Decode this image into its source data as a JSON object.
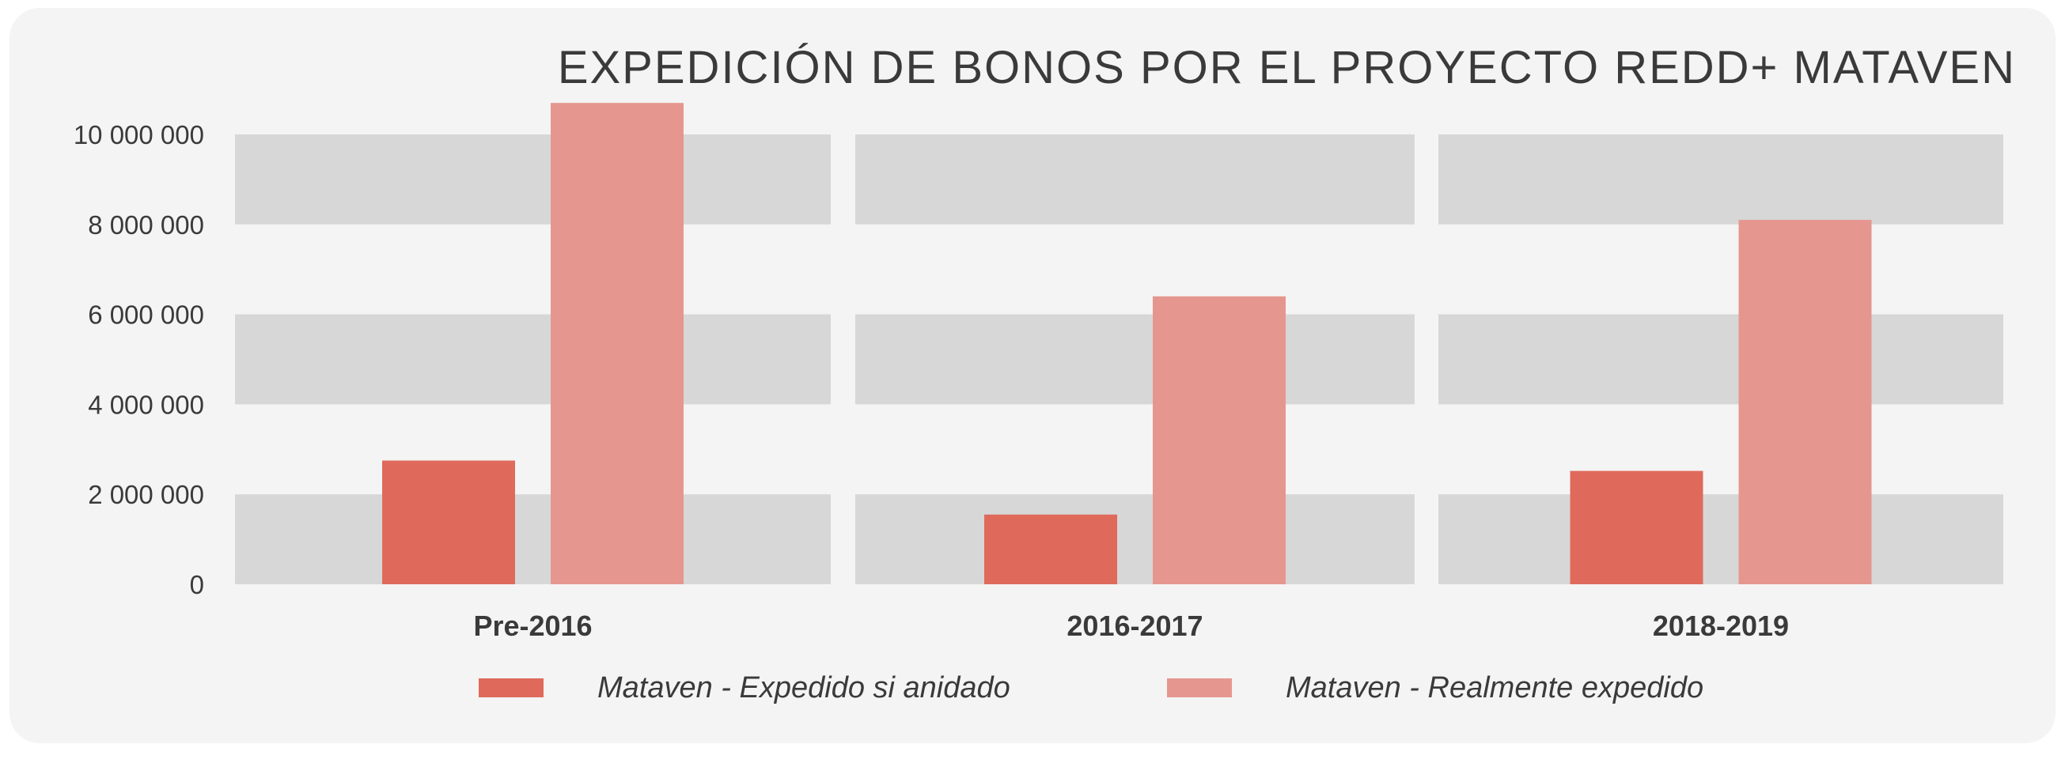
{
  "chart_data": {
    "type": "bar",
    "title": "EXPEDICIÓN DE BONOS POR EL PROYECTO REDD+ MATAVEN",
    "xlabel": "",
    "ylabel": "",
    "categories": [
      "Pre-2016",
      "2016-2017",
      "2018-2019"
    ],
    "series": [
      {
        "name": "Mataven - Expedido si anidado",
        "color": "#df6a5c",
        "values": [
          2750000,
          1550000,
          2520000
        ]
      },
      {
        "name": "Mataven - Realmente expedido",
        "color": "#e5978f",
        "values": [
          10700000,
          6400000,
          8100000
        ]
      }
    ],
    "ylim": [
      0,
      10000000
    ],
    "yticks": [
      0,
      2000000,
      4000000,
      6000000,
      8000000,
      10000000
    ],
    "ytick_labels": [
      "0",
      "2 000 000",
      "4 000 000",
      "6 000 000",
      "8 000 000",
      "10 000 000"
    ],
    "grid": "alternating horizontal bands",
    "legend_position": "bottom",
    "colors": {
      "band": "#d7d7d7",
      "background": "#f4f4f4",
      "text": "#3a3a3a"
    }
  }
}
